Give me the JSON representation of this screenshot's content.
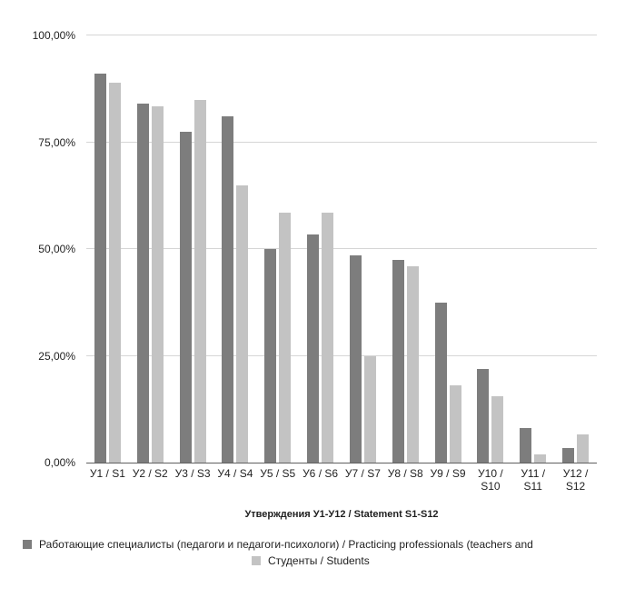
{
  "chart_data": {
    "type": "bar",
    "title": "",
    "xlabel": "Утверждения У1-У12 / Statement S1-S12",
    "ylabel": "",
    "ylim": [
      0,
      100
    ],
    "grid": true,
    "legend_position": "bottom",
    "y_ticks": [
      {
        "value": 100,
        "label": "100,00%"
      },
      {
        "value": 75,
        "label": "75,00%"
      },
      {
        "value": 50,
        "label": "50,00%"
      },
      {
        "value": 25,
        "label": "25,00%"
      },
      {
        "value": 0,
        "label": "0,00%"
      }
    ],
    "categories": [
      "У1 / S1",
      "У2 / S2",
      "У3 / S3",
      "У4 / S4",
      "У5 / S5",
      "У6 / S6",
      "У7 / S7",
      "У8 / S8",
      "У9 / S9",
      "У10 / S10",
      "У11 / S11",
      "У12 / S12"
    ],
    "series": [
      {
        "name": "Работающие специалисты (педагоги и педагоги-психологи) / Practicing professionals (teachers and",
        "color": "#7d7d7d",
        "values": [
          91,
          84,
          77.5,
          81,
          50,
          53.5,
          48.5,
          47.5,
          37.5,
          22,
          8,
          3.5
        ]
      },
      {
        "name": "Студенты / Students",
        "color": "#c3c3c3",
        "values": [
          89,
          83.5,
          85,
          65,
          58.5,
          58.5,
          25,
          46,
          18,
          15.5,
          2,
          6.5
        ]
      }
    ]
  },
  "colors": {
    "background": "#ffffff",
    "gridline": "#d6d6d6",
    "axis_line": "#5f5f5f",
    "text": "#1f1f1f",
    "series_dark": "#7d7d7d",
    "series_light": "#c3c3c3"
  }
}
